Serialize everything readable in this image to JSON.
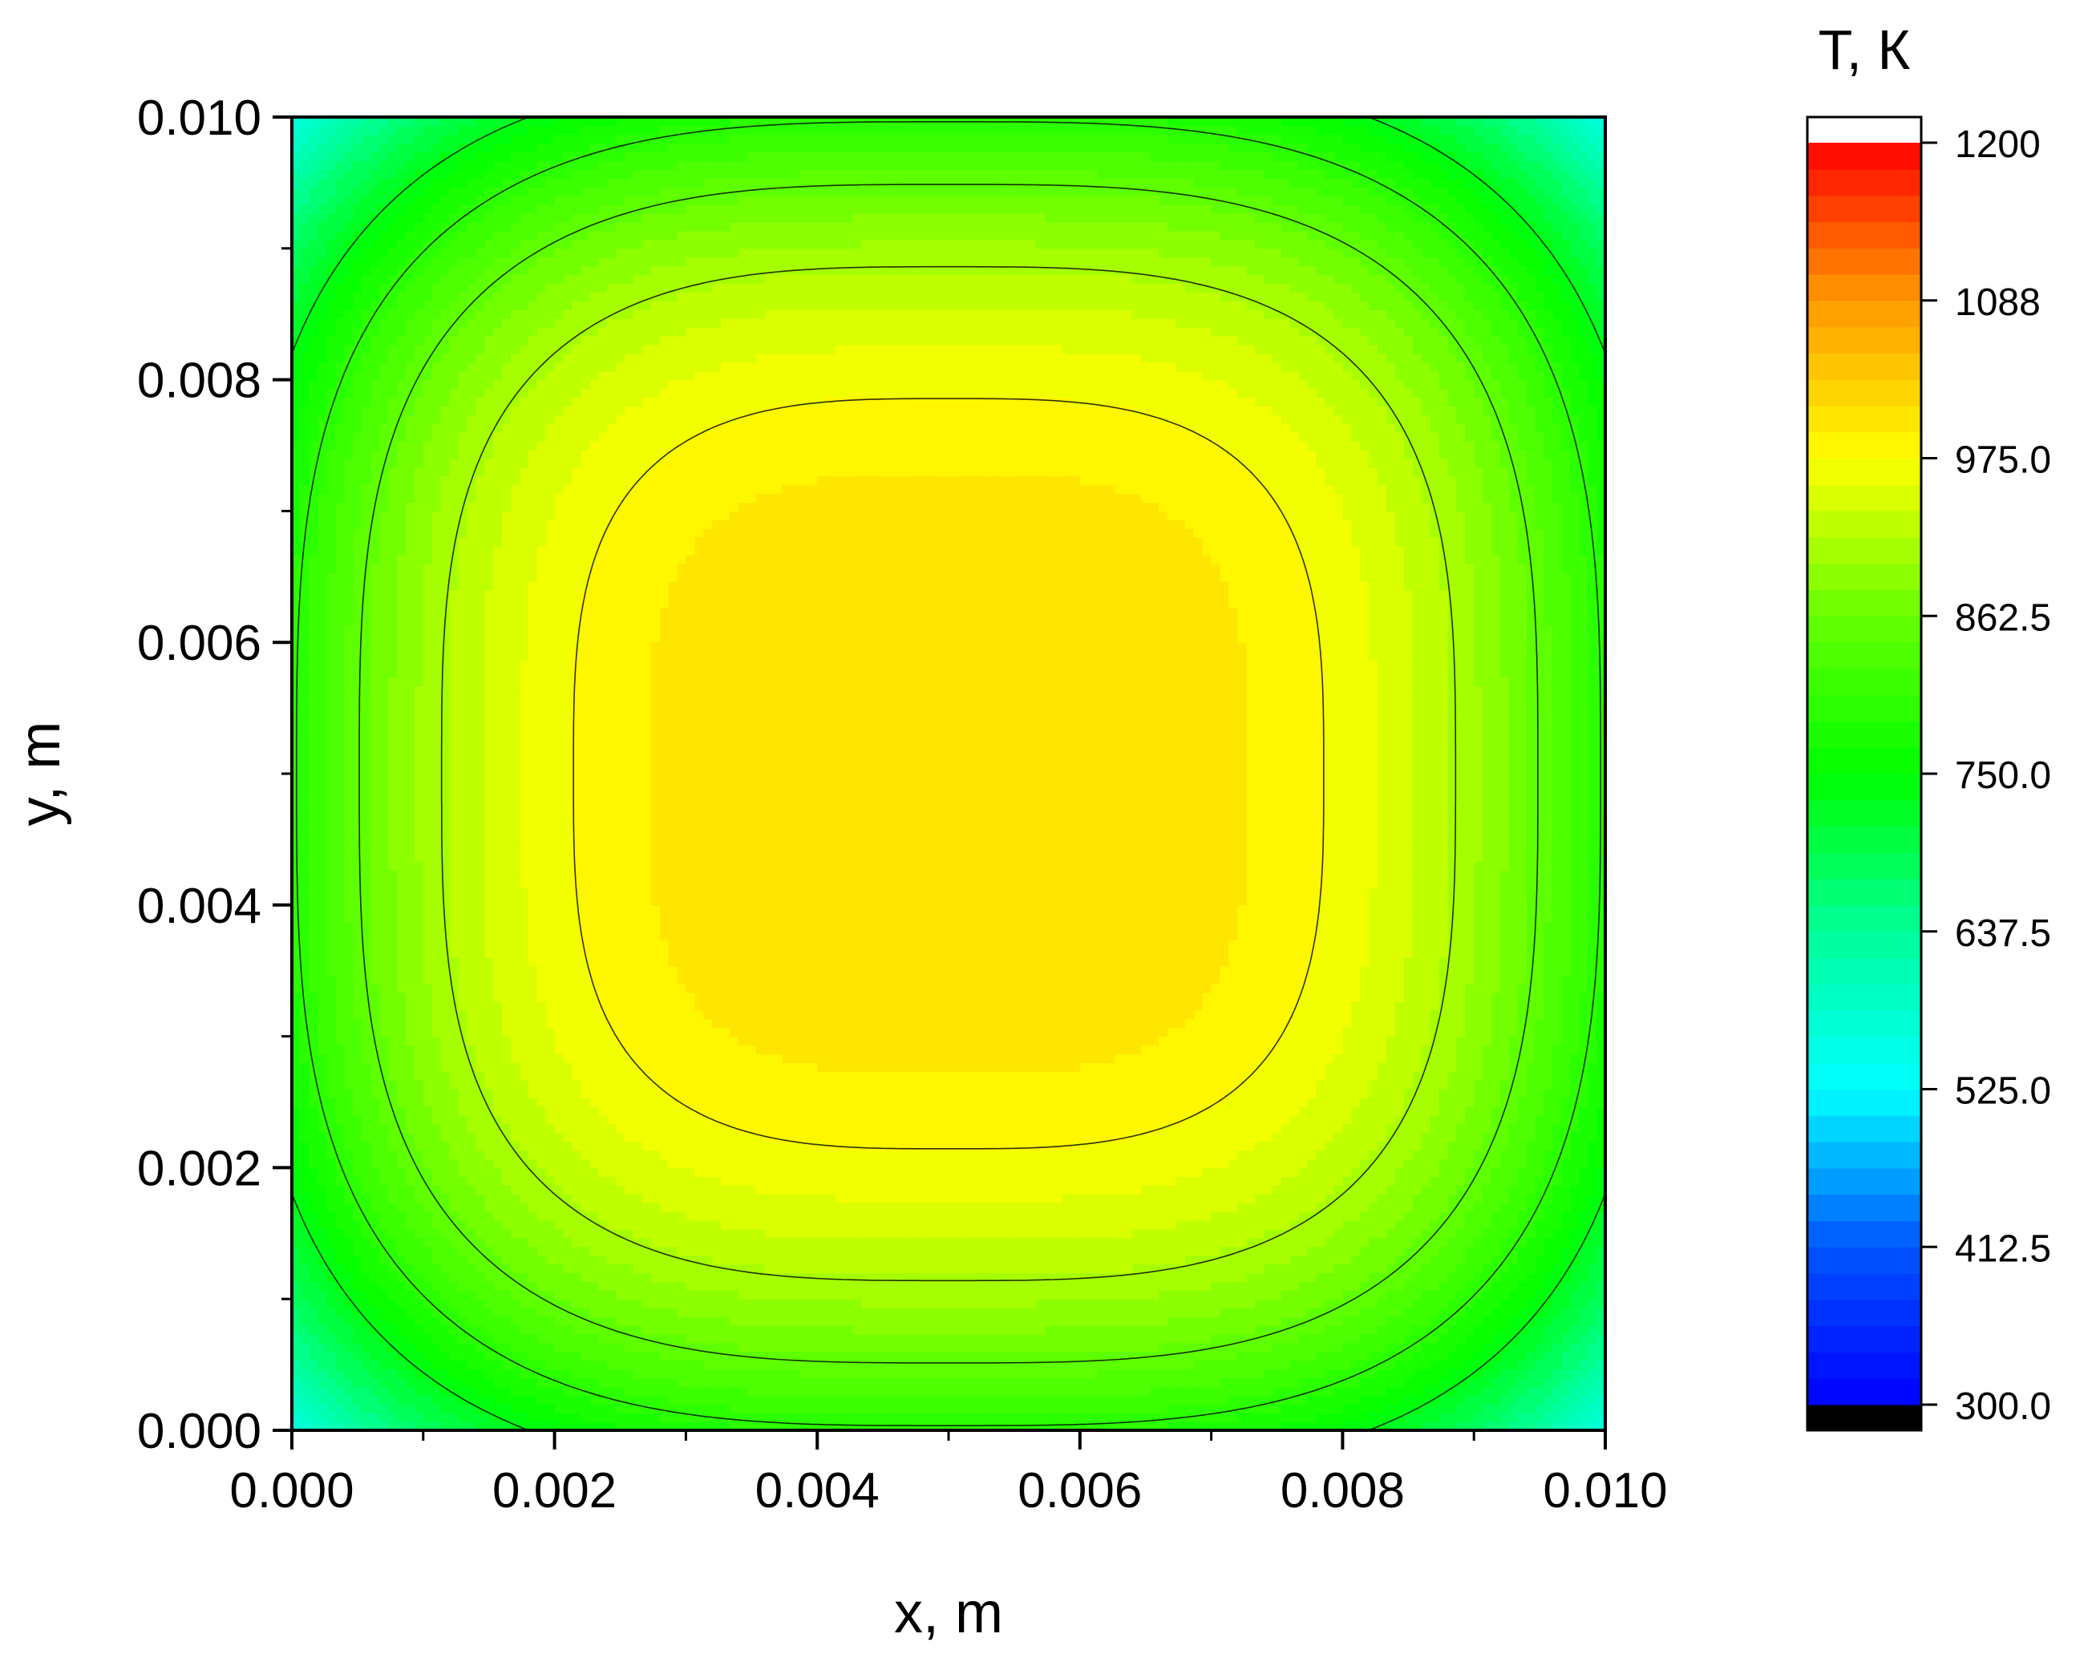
{
  "chart_data": {
    "type": "heatmap",
    "title": "",
    "xlabel": "x, m",
    "ylabel": "y, m",
    "xlim": [
      0.0,
      0.01
    ],
    "ylim": [
      0.0,
      0.01
    ],
    "x_ticks": [
      "0.000",
      "0.002",
      "0.004",
      "0.006",
      "0.008",
      "0.010"
    ],
    "y_ticks": [
      "0.000",
      "0.002",
      "0.004",
      "0.006",
      "0.008",
      "0.010"
    ],
    "grid": false,
    "field": {
      "description_values_K": {
        "center": 1012,
        "edge_midpoint": 790,
        "corner": 560
      }
    },
    "contour_lines_K": [
      735,
      795,
      855,
      915,
      975
    ],
    "colorbar": {
      "title": "T, К",
      "range": [
        300.0,
        1200.0
      ],
      "levels": 48,
      "tick_labels": [
        "300.0",
        "412.5",
        "525.0",
        "637.5",
        "750.0",
        "862.5",
        "975.0",
        "1088",
        "1200"
      ],
      "below_color": "#000000",
      "above_color": "#ffffff"
    },
    "colors": {
      "stops": [
        {
          "v": 300.0,
          "c": "#0000ff"
        },
        {
          "v": 412.5,
          "c": "#0055ff"
        },
        {
          "v": 525.0,
          "c": "#00ffff"
        },
        {
          "v": 637.5,
          "c": "#00ff99"
        },
        {
          "v": 750.0,
          "c": "#00ff00"
        },
        {
          "v": 862.5,
          "c": "#66ff00"
        },
        {
          "v": 975.0,
          "c": "#ffff00"
        },
        {
          "v": 1088.0,
          "c": "#ff9900"
        },
        {
          "v": 1200.0,
          "c": "#ff0000"
        }
      ]
    }
  }
}
